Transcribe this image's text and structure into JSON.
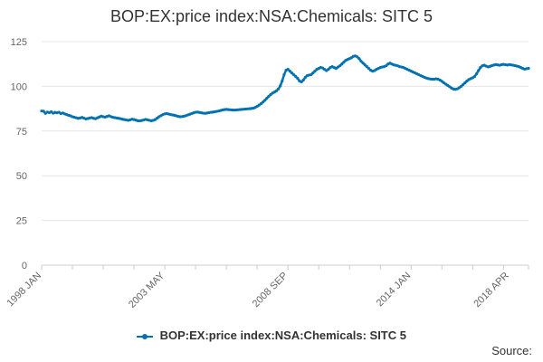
{
  "chart_data": {
    "type": "line",
    "title": "BOP:EX:price index:NSA:Chemicals: SITC 5",
    "xlabel": "",
    "ylabel": "",
    "ylim": [
      0,
      125
    ],
    "yticks": [
      0,
      25,
      50,
      75,
      100,
      125
    ],
    "xtick_labels": [
      "1998 JAN",
      "2003 MAY",
      "2008 SEP",
      "2014 JAN",
      "2018 APR"
    ],
    "xtick_index": [
      0,
      64,
      128,
      192,
      243
    ],
    "legend_position": "bottom",
    "series": [
      {
        "name": "BOP:EX:price index:NSA:Chemicals: SITC 5",
        "color": "#0072b2",
        "values": [
          86.2,
          86.1,
          84.9,
          85.6,
          85.3,
          85.8,
          85.0,
          85.4,
          85.2,
          85.5,
          84.8,
          85.1,
          84.6,
          84.2,
          83.8,
          83.5,
          83.0,
          82.7,
          82.4,
          82.1,
          82.3,
          82.6,
          82.2,
          81.8,
          82.0,
          82.3,
          82.5,
          82.1,
          81.9,
          82.4,
          82.9,
          83.3,
          83.0,
          82.8,
          83.2,
          83.5,
          83.1,
          82.7,
          82.5,
          82.3,
          82.1,
          81.9,
          81.6,
          81.4,
          81.2,
          81.0,
          81.3,
          81.6,
          81.4,
          81.1,
          80.8,
          80.7,
          80.9,
          81.2,
          81.5,
          81.3,
          81.0,
          80.8,
          81.0,
          81.4,
          82.2,
          83.0,
          83.6,
          84.2,
          84.6,
          84.8,
          84.5,
          84.2,
          84.0,
          83.8,
          83.5,
          83.2,
          83.0,
          83.1,
          83.3,
          83.6,
          84.0,
          84.4,
          84.8,
          85.2,
          85.5,
          85.6,
          85.4,
          85.2,
          85.0,
          84.9,
          85.1,
          85.3,
          85.5,
          85.6,
          85.8,
          86.0,
          86.2,
          86.5,
          86.8,
          87.0,
          87.1,
          87.0,
          86.9,
          86.8,
          86.7,
          86.8,
          86.9,
          87.0,
          87.1,
          87.2,
          87.3,
          87.4,
          87.5,
          87.6,
          87.8,
          88.2,
          88.8,
          89.5,
          90.3,
          91.2,
          92.2,
          93.3,
          94.4,
          95.4,
          96.2,
          96.8,
          97.5,
          98.5,
          100.2,
          103.0,
          106.5,
          109.0,
          109.5,
          108.5,
          107.5,
          106.5,
          105.5,
          104.5,
          103.0,
          102.5,
          103.5,
          105.0,
          106.0,
          106.3,
          106.5,
          107.5,
          108.5,
          109.5,
          110.0,
          110.5,
          110.3,
          109.5,
          108.8,
          109.5,
          110.5,
          111.0,
          110.5,
          110.0,
          110.8,
          111.5,
          112.5,
          113.5,
          114.5,
          115.0,
          115.5,
          116.0,
          116.8,
          117.0,
          116.5,
          115.5,
          114.0,
          113.0,
          112.0,
          111.0,
          110.0,
          109.0,
          108.5,
          108.8,
          109.5,
          110.0,
          110.5,
          110.8,
          111.0,
          111.5,
          112.5,
          113.0,
          112.5,
          112.0,
          111.8,
          111.5,
          111.0,
          110.8,
          110.5,
          110.0,
          109.5,
          109.0,
          108.5,
          108.0,
          107.5,
          107.0,
          106.5,
          106.0,
          105.5,
          105.0,
          104.6,
          104.3,
          104.1,
          104.0,
          104.0,
          104.2,
          104.0,
          103.5,
          102.8,
          102.0,
          101.2,
          100.5,
          99.8,
          99.0,
          98.5,
          98.3,
          98.6,
          99.2,
          100.0,
          101.0,
          102.0,
          103.0,
          103.8,
          104.3,
          104.8,
          105.5,
          107.0,
          108.8,
          110.5,
          111.5,
          111.8,
          111.3,
          110.9,
          111.2,
          111.6,
          111.9,
          112.2,
          112.0,
          111.8,
          112.1,
          112.3,
          112.1,
          111.9,
          112.2,
          112.0,
          111.8,
          111.6,
          111.3,
          111.0,
          110.5,
          110.0,
          109.6,
          109.9,
          110.1
        ]
      }
    ]
  },
  "source_label": "Source:"
}
